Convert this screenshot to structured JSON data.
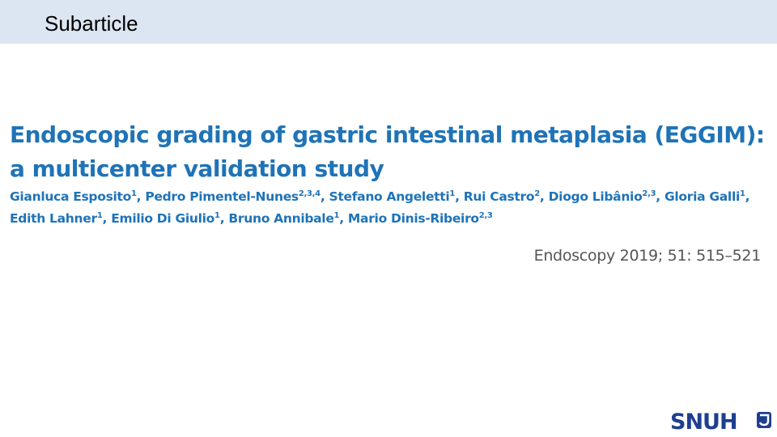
{
  "header": {
    "title": "Subarticle"
  },
  "article": {
    "title_lines": [
      "Endoscopic grading of gastric intestinal metaplasia (EGGIM):",
      "a multicenter validation study"
    ],
    "separator": ",",
    "author_lines": [
      [
        {
          "name": "Gianluca Esposito",
          "affiliations": "1"
        },
        {
          "name": "Pedro Pimentel-Nunes",
          "affiliations": "2,3,4"
        },
        {
          "name": "Stefano Angeletti",
          "affiliations": "1"
        },
        {
          "name": "Rui Castro",
          "affiliations": "2"
        },
        {
          "name": "Diogo Libânio",
          "affiliations": "2,3"
        },
        {
          "name": "Gloria Galli",
          "affiliations": "1"
        }
      ],
      [
        {
          "name": "Edith Lahner",
          "affiliations": "1"
        },
        {
          "name": "Emilio Di Giulio",
          "affiliations": "1"
        },
        {
          "name": "Bruno Annibale",
          "affiliations": "1"
        },
        {
          "name": "Mario Dinis-Ribeiro",
          "affiliations": "2,3"
        }
      ]
    ],
    "citation": "Endoscopy 2019; 51: 515–521"
  },
  "logo": {
    "text": "SNUH"
  }
}
